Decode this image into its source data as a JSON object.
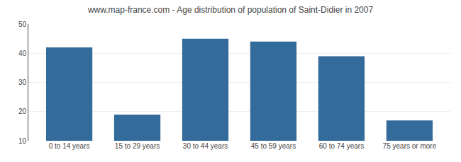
{
  "chart_data": {
    "type": "bar",
    "title": "www.map-france.com - Age distribution of population of Saint-Didier in 2007",
    "categories": [
      "0 to 14 years",
      "15 to 29 years",
      "30 to 44 years",
      "45 to 59 years",
      "60 to 74 years",
      "75 years or more"
    ],
    "values": [
      42,
      19,
      45,
      44,
      39,
      17
    ],
    "color": "#336b9a",
    "ylim": [
      10,
      50
    ],
    "yticks": [
      10,
      20,
      30,
      40,
      50
    ],
    "grid": true
  }
}
